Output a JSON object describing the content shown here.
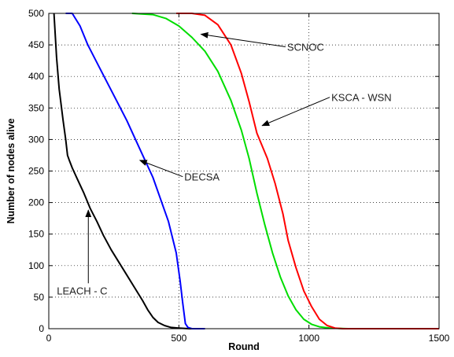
{
  "chart_data": {
    "type": "line",
    "xlabel": "Round",
    "ylabel": "Number of nodes alive",
    "xlim": [
      0,
      1500
    ],
    "ylim": [
      0,
      500
    ],
    "xticks": [
      0,
      500,
      1000,
      1500
    ],
    "yticks": [
      0,
      50,
      100,
      150,
      200,
      250,
      300,
      350,
      400,
      450,
      500
    ],
    "grid": true,
    "legend": "none (curves labelled with arrow annotations)",
    "series": [
      {
        "name": "LEACH - C",
        "color": "#000000",
        "points": [
          [
            20,
            500
          ],
          [
            30,
            430
          ],
          [
            40,
            380
          ],
          [
            55,
            330
          ],
          [
            65,
            300
          ],
          [
            72,
            275
          ],
          [
            78,
            268
          ],
          [
            90,
            255
          ],
          [
            110,
            237
          ],
          [
            135,
            215
          ],
          [
            160,
            190
          ],
          [
            185,
            170
          ],
          [
            210,
            148
          ],
          [
            240,
            125
          ],
          [
            270,
            105
          ],
          [
            300,
            85
          ],
          [
            330,
            65
          ],
          [
            360,
            45
          ],
          [
            380,
            30
          ],
          [
            400,
            18
          ],
          [
            420,
            10
          ],
          [
            445,
            5
          ],
          [
            470,
            2
          ],
          [
            500,
            1
          ],
          [
            540,
            0
          ],
          [
            600,
            0
          ]
        ]
      },
      {
        "name": "DECSA",
        "color": "#0000ff",
        "points": [
          [
            65,
            500
          ],
          [
            90,
            500
          ],
          [
            120,
            480
          ],
          [
            150,
            450
          ],
          [
            200,
            410
          ],
          [
            250,
            370
          ],
          [
            300,
            330
          ],
          [
            350,
            285
          ],
          [
            400,
            240
          ],
          [
            430,
            205
          ],
          [
            460,
            170
          ],
          [
            490,
            120
          ],
          [
            505,
            75
          ],
          [
            515,
            40
          ],
          [
            525,
            8
          ],
          [
            535,
            2
          ],
          [
            550,
            0
          ],
          [
            600,
            0
          ]
        ]
      },
      {
        "name": "SCNOC",
        "color": "#00dd00",
        "points": [
          [
            320,
            500
          ],
          [
            400,
            498
          ],
          [
            450,
            492
          ],
          [
            500,
            480
          ],
          [
            550,
            462
          ],
          [
            600,
            440
          ],
          [
            650,
            408
          ],
          [
            700,
            362
          ],
          [
            740,
            315
          ],
          [
            770,
            270
          ],
          [
            800,
            215
          ],
          [
            830,
            165
          ],
          [
            860,
            120
          ],
          [
            890,
            82
          ],
          [
            920,
            52
          ],
          [
            950,
            30
          ],
          [
            980,
            15
          ],
          [
            1010,
            7
          ],
          [
            1040,
            3
          ],
          [
            1080,
            1
          ],
          [
            1150,
            0
          ],
          [
            1500,
            0
          ]
        ]
      },
      {
        "name": "KSCA - WSN",
        "color": "#ff0000",
        "points": [
          [
            490,
            500
          ],
          [
            550,
            500
          ],
          [
            600,
            497
          ],
          [
            650,
            482
          ],
          [
            700,
            450
          ],
          [
            740,
            405
          ],
          [
            770,
            360
          ],
          [
            800,
            310
          ],
          [
            840,
            270
          ],
          [
            870,
            230
          ],
          [
            900,
            182
          ],
          [
            920,
            140
          ],
          [
            950,
            97
          ],
          [
            980,
            60
          ],
          [
            1010,
            35
          ],
          [
            1040,
            15
          ],
          [
            1070,
            5
          ],
          [
            1100,
            1
          ],
          [
            1130,
            0
          ],
          [
            1500,
            0
          ]
        ]
      }
    ],
    "annotations": [
      {
        "text": "SCNOC",
        "xy": [
          585,
          467
        ],
        "xytext": [
          910,
          447
        ]
      },
      {
        "text": "KSCA - WSN",
        "xy": [
          820,
          322
        ],
        "xytext": [
          1080,
          367
        ]
      },
      {
        "text": "DECSA",
        "xy": [
          350,
          267
        ],
        "xytext": [
          515,
          241
        ]
      },
      {
        "text": "LEACH - C",
        "xy": [
          152,
          188
        ],
        "xytext": [
          152,
          62
        ]
      }
    ]
  }
}
